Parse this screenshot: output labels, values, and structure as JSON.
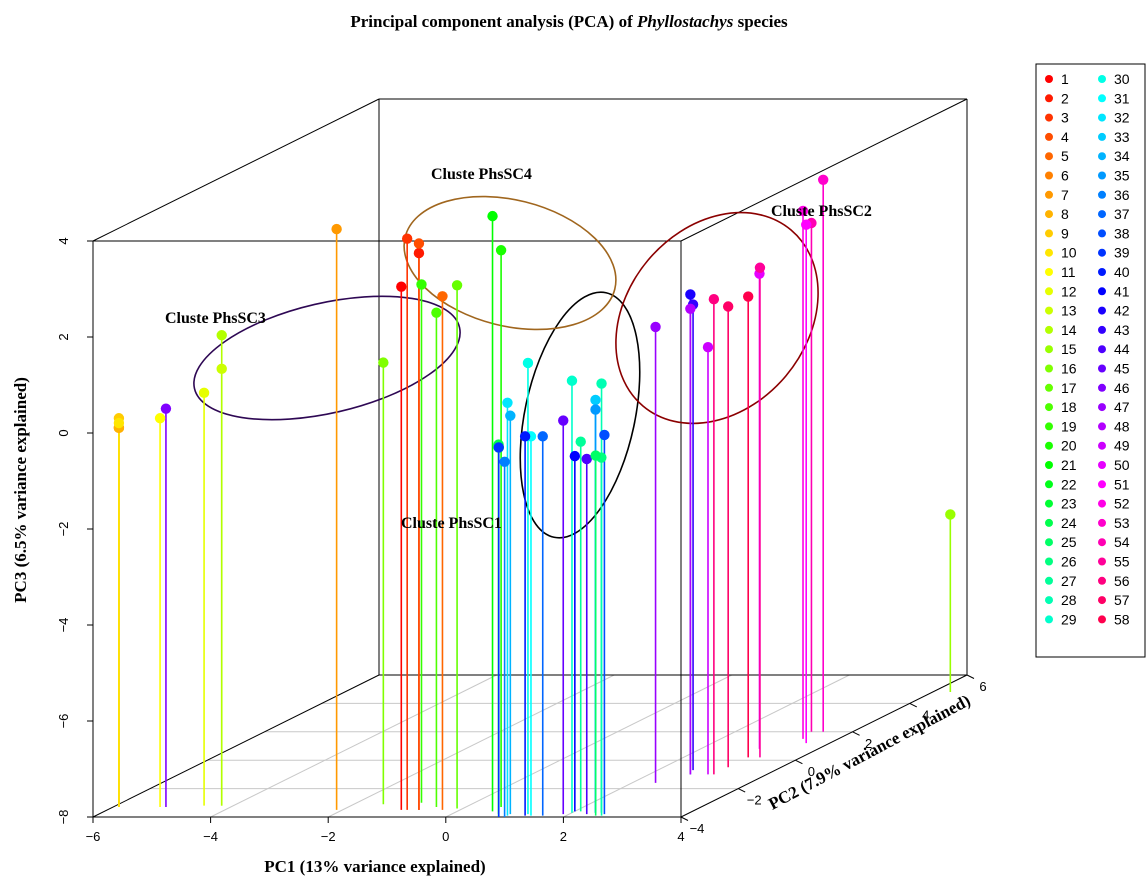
{
  "chart_data": {
    "type": "scatter",
    "subtype": "3d-scatter-with-drop-lines",
    "title_parts": [
      "Principal component analysis (PCA) of ",
      "Phyllostachys",
      " species"
    ],
    "xlabel": "PC1 (13% variance explained)",
    "ylabel": "PC2 (7.9% variance explained)",
    "zlabel": "PC3 (6.5% variance explained)",
    "xlim": [
      -6,
      4
    ],
    "ylim": [
      -4,
      6
    ],
    "zlim": [
      -8,
      4
    ],
    "x_ticks": [
      "-6",
      "-4",
      "-2",
      "0",
      "2",
      "4"
    ],
    "y_ticks": [
      "-4",
      "-2",
      "0",
      "2",
      "4",
      "6"
    ],
    "z_ticks": [
      "-8",
      "-6",
      "-4",
      "-2",
      "0",
      "2",
      "4"
    ],
    "grid": true,
    "legend_placement": "right",
    "legend_labels": [
      "1",
      "2",
      "3",
      "4",
      "5",
      "6",
      "7",
      "8",
      "9",
      "10",
      "11",
      "12",
      "13",
      "14",
      "15",
      "16",
      "17",
      "18",
      "19",
      "20",
      "21",
      "22",
      "23",
      "24",
      "25",
      "26",
      "27",
      "28",
      "29",
      "30",
      "31",
      "32",
      "33",
      "34",
      "35",
      "36",
      "37",
      "38",
      "39",
      "40",
      "41",
      "42",
      "43",
      "44",
      "45",
      "46",
      "47",
      "48",
      "49",
      "50",
      "51",
      "52",
      "53",
      "54",
      "55",
      "56",
      "57",
      "58"
    ],
    "colors": [
      "#ff0000",
      "#ff1a00",
      "#ff3300",
      "#ff4d00",
      "#ff6600",
      "#ff8000",
      "#ff9900",
      "#ffb300",
      "#ffcc00",
      "#ffe600",
      "#ffff00",
      "#e6ff00",
      "#ccff00",
      "#b3ff00",
      "#99ff00",
      "#80ff00",
      "#66ff00",
      "#4dff00",
      "#33ff00",
      "#1aff00",
      "#00ff00",
      "#00ff1a",
      "#00ff33",
      "#00ff4d",
      "#00ff66",
      "#00ff80",
      "#00ff99",
      "#00ffb3",
      "#00ffcc",
      "#00ffe6",
      "#00ffff",
      "#00e6ff",
      "#00ccff",
      "#00b3ff",
      "#0099ff",
      "#0080ff",
      "#0066ff",
      "#004dff",
      "#0033ff",
      "#001aff",
      "#0000ff",
      "#1a00ff",
      "#3300ff",
      "#4d00ff",
      "#6600ff",
      "#8000ff",
      "#9900ff",
      "#b300ff",
      "#cc00ff",
      "#e600ff",
      "#ff00ff",
      "#ff00e6",
      "#ff00cc",
      "#ff00b3",
      "#ff0099",
      "#ff0080",
      "#ff0066",
      "#ff004d"
    ],
    "points": [
      {
        "id": "1",
        "x": -1.0,
        "y": -3.5,
        "z": 2.9
      },
      {
        "id": "2",
        "x": -0.7,
        "y": -3.5,
        "z": 3.6
      },
      {
        "id": "3",
        "x": -0.9,
        "y": -3.5,
        "z": 3.9
      },
      {
        "id": "4",
        "x": -0.7,
        "y": -3.5,
        "z": 3.8
      },
      {
        "id": "5",
        "x": -0.3,
        "y": -3.5,
        "z": 2.7
      },
      {
        "id": "6",
        "x": -5.9,
        "y": -3.3,
        "z": -0.1
      },
      {
        "id": "7",
        "x": -2.1,
        "y": -3.5,
        "z": 4.1
      },
      {
        "id": "8",
        "x": -5.9,
        "y": -3.3,
        "z": -0.1
      },
      {
        "id": "9",
        "x": -5.9,
        "y": -3.3,
        "z": 0.1
      },
      {
        "id": "10",
        "x": -5.9,
        "y": -3.3,
        "z": 0.0
      },
      {
        "id": "11",
        "x": -5.2,
        "y": -3.3,
        "z": 0.1
      },
      {
        "id": "12",
        "x": -4.5,
        "y": -3.2,
        "z": 0.6
      },
      {
        "id": "13",
        "x": -4.2,
        "y": -3.2,
        "z": 1.1
      },
      {
        "id": "14",
        "x": -4.2,
        "y": -3.2,
        "z": 1.8
      },
      {
        "id": "15",
        "x": 4.3,
        "y": 4.8,
        "z": -4.3
      },
      {
        "id": "16",
        "x": -1.5,
        "y": -3.1,
        "z": 1.2
      },
      {
        "id": "17",
        "x": -0.1,
        "y": -3.4,
        "z": 2.9
      },
      {
        "id": "18",
        "x": -0.5,
        "y": -3.3,
        "z": 2.3
      },
      {
        "id": "19",
        "x": -0.9,
        "y": -3.0,
        "z": 2.8
      },
      {
        "id": "20",
        "x": 0.6,
        "y": -3.3,
        "z": 3.6
      },
      {
        "id": "21",
        "x": 0.6,
        "y": -3.6,
        "z": 4.4
      },
      {
        "id": "22",
        "x": 0.9,
        "y": -4.0,
        "z": -0.3
      },
      {
        "id": "23",
        "x": 0.9,
        "y": -4.0,
        "z": -0.3
      },
      {
        "id": "24",
        "x": 0.8,
        "y": -3.8,
        "z": -0.3
      },
      {
        "id": "25",
        "x": 2.5,
        "y": -3.9,
        "z": -0.5
      },
      {
        "id": "26",
        "x": 2.5,
        "y": -3.7,
        "z": -0.6
      },
      {
        "id": "27",
        "x": 2.1,
        "y": -3.6,
        "z": -0.3
      },
      {
        "id": "28",
        "x": 2.6,
        "y": -3.9,
        "z": 1.0
      },
      {
        "id": "29",
        "x": 2.0,
        "y": -3.7,
        "z": 1.0
      },
      {
        "id": "30",
        "x": 1.3,
        "y": -3.8,
        "z": 1.4
      },
      {
        "id": "31",
        "x": 1.4,
        "y": -3.9,
        "z": -0.1
      },
      {
        "id": "32",
        "x": 1.0,
        "y": -3.9,
        "z": 0.6
      },
      {
        "id": "33",
        "x": 2.4,
        "y": -3.7,
        "z": 0.6
      },
      {
        "id": "34",
        "x": 1.0,
        "y": -3.8,
        "z": 0.3
      },
      {
        "id": "35",
        "x": 2.4,
        "y": -3.7,
        "z": 0.4
      },
      {
        "id": "36",
        "x": 1.0,
        "y": -4.0,
        "z": -0.6
      },
      {
        "id": "37",
        "x": 1.6,
        "y": -3.9,
        "z": -0.1
      },
      {
        "id": "38",
        "x": 2.6,
        "y": -3.8,
        "z": -0.1
      },
      {
        "id": "39",
        "x": 0.9,
        "y": -4.0,
        "z": -0.3
      },
      {
        "id": "40",
        "x": 1.3,
        "y": -3.9,
        "z": -0.1
      },
      {
        "id": "41",
        "x": 2.0,
        "y": -3.6,
        "z": -0.6
      },
      {
        "id": "42",
        "x": 2.7,
        "y": -1.0,
        "z": 2.0
      },
      {
        "id": "43",
        "x": 2.6,
        "y": -0.7,
        "z": 1.7
      },
      {
        "id": "44",
        "x": 2.3,
        "y": -3.8,
        "z": -0.6
      },
      {
        "id": "45",
        "x": 1.9,
        "y": -3.8,
        "z": 0.2
      },
      {
        "id": "46",
        "x": -5.1,
        "y": -3.3,
        "z": 0.3
      },
      {
        "id": "47",
        "x": 2.4,
        "y": -1.6,
        "z": 1.5
      },
      {
        "id": "48",
        "x": 2.7,
        "y": -1.0,
        "z": 1.7
      },
      {
        "id": "49",
        "x": 3.0,
        "y": -1.0,
        "z": 0.9
      },
      {
        "id": "50",
        "x": 3.0,
        "y": 0.8,
        "z": 1.9
      },
      {
        "id": "51",
        "x": 3.6,
        "y": 1.2,
        "z": 2.8
      },
      {
        "id": "52",
        "x": 3.4,
        "y": 1.5,
        "z": 3.0
      },
      {
        "id": "53",
        "x": 3.5,
        "y": 2.0,
        "z": 3.5
      },
      {
        "id": "54",
        "x": 3.3,
        "y": 2.0,
        "z": 2.6
      },
      {
        "id": "55",
        "x": 3.3,
        "y": 0.2,
        "z": 2.2
      },
      {
        "id": "56",
        "x": 3.1,
        "y": -1.0,
        "z": 1.9
      },
      {
        "id": "57",
        "x": 3.1,
        "y": -0.5,
        "z": 1.6
      },
      {
        "id": "58",
        "x": 3.1,
        "y": 0.2,
        "z": 1.6
      }
    ],
    "annotations": [
      "Cluste PhsSC1",
      "Cluste PhsSC2",
      "Cluste PhsSC3",
      "Cluste PhsSC4"
    ],
    "cluster_colors": [
      "#000000",
      "#8b0000",
      "#2e0854",
      "#a0661e"
    ]
  }
}
